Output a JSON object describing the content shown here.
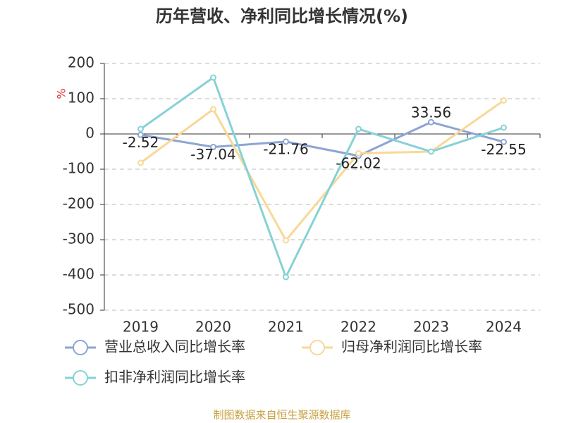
{
  "chart_data": {
    "type": "line",
    "title": "历年营收、净利同比增长情况(%)",
    "y_label": "%",
    "categories": [
      "2019",
      "2020",
      "2021",
      "2022",
      "2023",
      "2024"
    ],
    "series": [
      {
        "name": "营业总收入同比增长率",
        "color": "#8da4d4",
        "values": [
          -2.52,
          -37.04,
          -21.76,
          -62.02,
          33.56,
          -22.55
        ],
        "show_labels": true
      },
      {
        "name": "归母净利润同比增长率",
        "color": "#f8d898",
        "values": [
          -82,
          70,
          -302,
          -55,
          -50,
          95
        ],
        "show_labels": false
      },
      {
        "name": "扣非净利润同比增长率",
        "color": "#86d2d6",
        "values": [
          14,
          160,
          -406,
          14,
          -50,
          18
        ],
        "show_labels": false
      }
    ],
    "ylim": [
      -500,
      200
    ],
    "yticks": [
      -500,
      -400,
      -300,
      -200,
      -100,
      0,
      100,
      200
    ],
    "grid": true,
    "source": "制图数据来自恒生聚源数据库"
  }
}
